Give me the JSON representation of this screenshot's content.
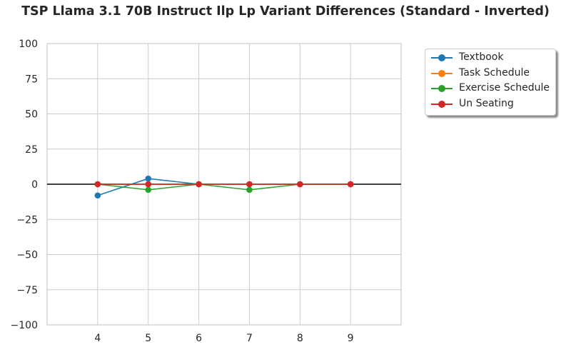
{
  "chart_data": {
    "type": "line",
    "title": "TSP Llama 3.1 70B Instruct Ilp Lp Variant Differences (Standard - Inverted)",
    "xlabel": "",
    "ylabel": "",
    "x": [
      4,
      5,
      6,
      7,
      8,
      9
    ],
    "xlim": [
      3,
      10
    ],
    "ylim": [
      -100,
      100
    ],
    "yticks": [
      100,
      75,
      50,
      25,
      0,
      -25,
      -50,
      -75,
      -100
    ],
    "ytick_labels": [
      "100",
      "75",
      "50",
      "25",
      "0",
      "−25",
      "−50",
      "−75",
      "−100"
    ],
    "xtick_labels": [
      "4",
      "5",
      "6",
      "7",
      "8",
      "9"
    ],
    "grid": true,
    "zero_line": true,
    "legend_placement": "outside-top-right",
    "series": [
      {
        "name": "Textbook",
        "color": "#1f77b4",
        "values": [
          -8,
          4,
          0,
          0,
          0,
          0
        ]
      },
      {
        "name": "Task Schedule",
        "color": "#ff7f0e",
        "values": [
          0,
          0,
          0,
          0,
          0,
          0
        ]
      },
      {
        "name": "Exercise Schedule",
        "color": "#2ca02c",
        "values": [
          0,
          -4,
          0,
          -4,
          0,
          0
        ]
      },
      {
        "name": "Un Seating",
        "color": "#d62728",
        "values": [
          0,
          0,
          0,
          0,
          0,
          0
        ]
      }
    ]
  }
}
